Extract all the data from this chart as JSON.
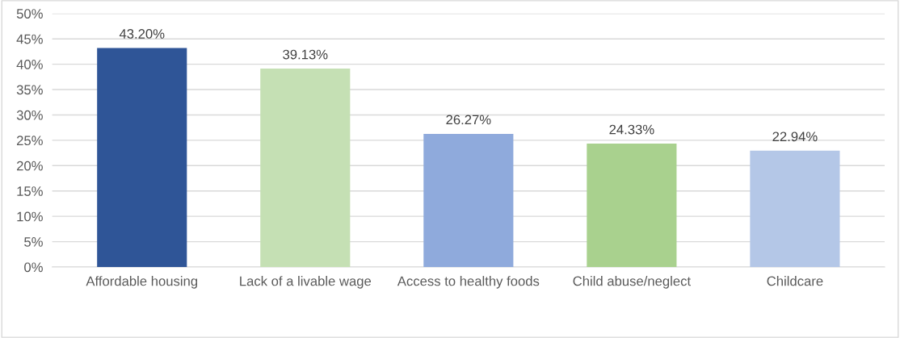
{
  "chart_data": {
    "type": "bar",
    "categories": [
      "Affordable housing",
      "Lack of a livable wage",
      "Access to healthy foods",
      "Child abuse/neglect",
      "Childcare"
    ],
    "values": [
      43.2,
      39.13,
      26.27,
      24.33,
      22.94
    ],
    "value_labels": [
      "43.20%",
      "39.13%",
      "26.27%",
      "24.33%",
      "22.94%"
    ],
    "colors": [
      "#2f5597",
      "#c5e0b4",
      "#8faadc",
      "#a9d18e",
      "#b4c7e7"
    ],
    "ylim": [
      0,
      50
    ],
    "yticks": [
      {
        "value": 0,
        "label": "0%"
      },
      {
        "value": 5,
        "label": "5%"
      },
      {
        "value": 10,
        "label": "10%"
      },
      {
        "value": 15,
        "label": "15%"
      },
      {
        "value": 20,
        "label": "20%"
      },
      {
        "value": 25,
        "label": "25%"
      },
      {
        "value": 30,
        "label": "30%"
      },
      {
        "value": 35,
        "label": "35%"
      },
      {
        "value": 40,
        "label": "40%"
      },
      {
        "value": 45,
        "label": "45%"
      },
      {
        "value": 50,
        "label": "50%"
      }
    ],
    "grid": "y"
  }
}
